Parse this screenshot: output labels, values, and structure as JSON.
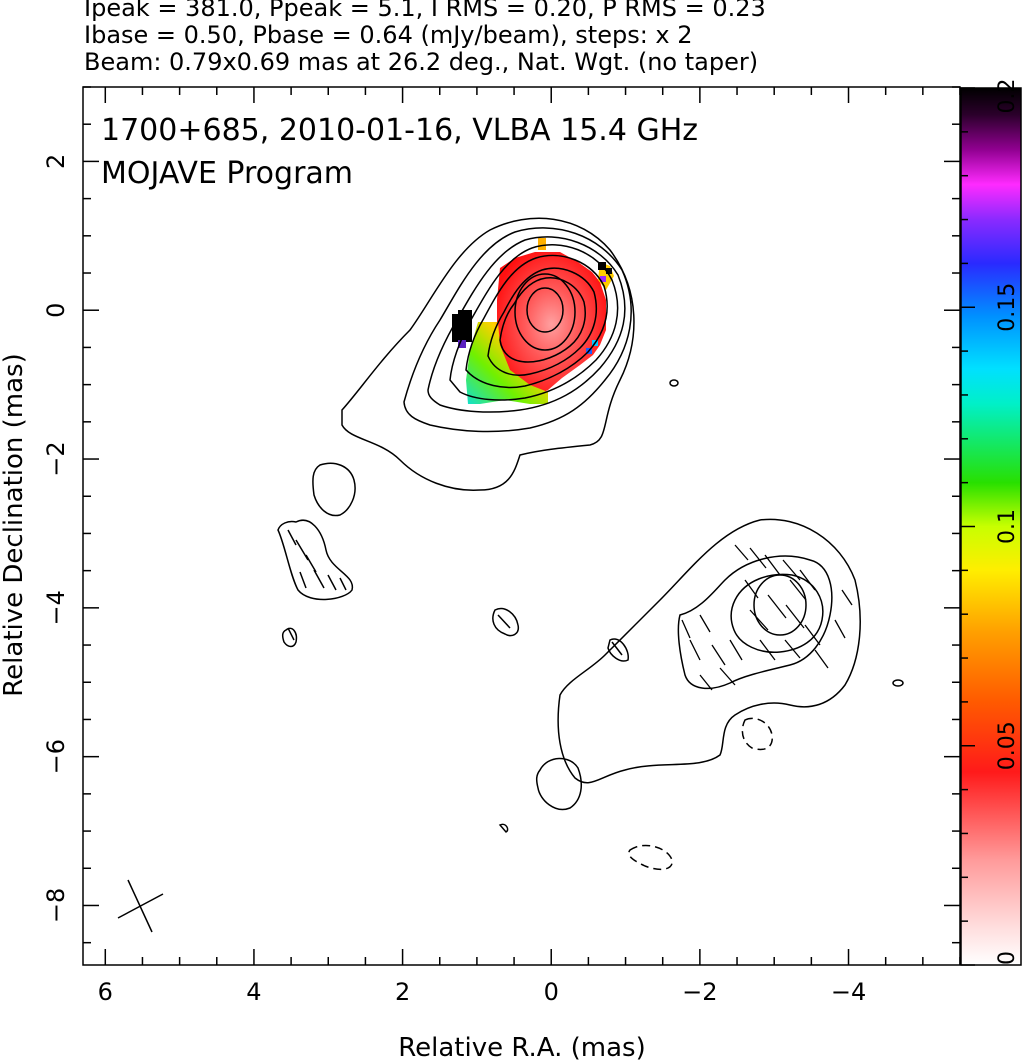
{
  "header": {
    "line1": "Ipeak = 381.0, Ppeak = 5.1, I RMS = 0.20, P RMS = 0.23",
    "line2": "Ibase = 0.50, Pbase = 0.64 (mJy/beam), steps: x 2",
    "line3": "Beam: 0.79x0.69 mas at 26.2 deg., Nat. Wgt. (no taper)"
  },
  "chart_data": {
    "type": "heatmap",
    "title": "1700+685, 2010-01-16, VLBA 15.4 GHz",
    "subtitle": "MOJAVE Program",
    "xlabel": "Relative R.A. (mas)",
    "ylabel": "Relative Declination (mas)",
    "xlim": [
      6.3,
      -5.5
    ],
    "ylim": [
      -8.8,
      3.0
    ],
    "x_ticks": [
      6,
      4,
      2,
      0,
      -2,
      -4
    ],
    "x_tick_labels": [
      "6",
      "4",
      "2",
      "0",
      "−2",
      "−4"
    ],
    "y_ticks": [
      2,
      0,
      -2,
      -4,
      -6,
      -8
    ],
    "y_tick_labels": [
      "2",
      "0",
      "−2",
      "−4",
      "−6",
      "−8"
    ],
    "colorbar": {
      "min": 0,
      "max": 0.2,
      "ticks": [
        0,
        0.05,
        0.1,
        0.15,
        0.2
      ],
      "tick_labels": [
        "0",
        "0.05",
        "0.1",
        "0.15",
        "0.2"
      ]
    },
    "core": {
      "x": 0,
      "y": 0
    },
    "secondary_component": {
      "x": -3.0,
      "y": -4.0
    },
    "beam": {
      "major_mas": 0.79,
      "minor_mas": 0.69,
      "pa_deg": 26.2,
      "x": 5.4,
      "y": -8.0
    }
  }
}
